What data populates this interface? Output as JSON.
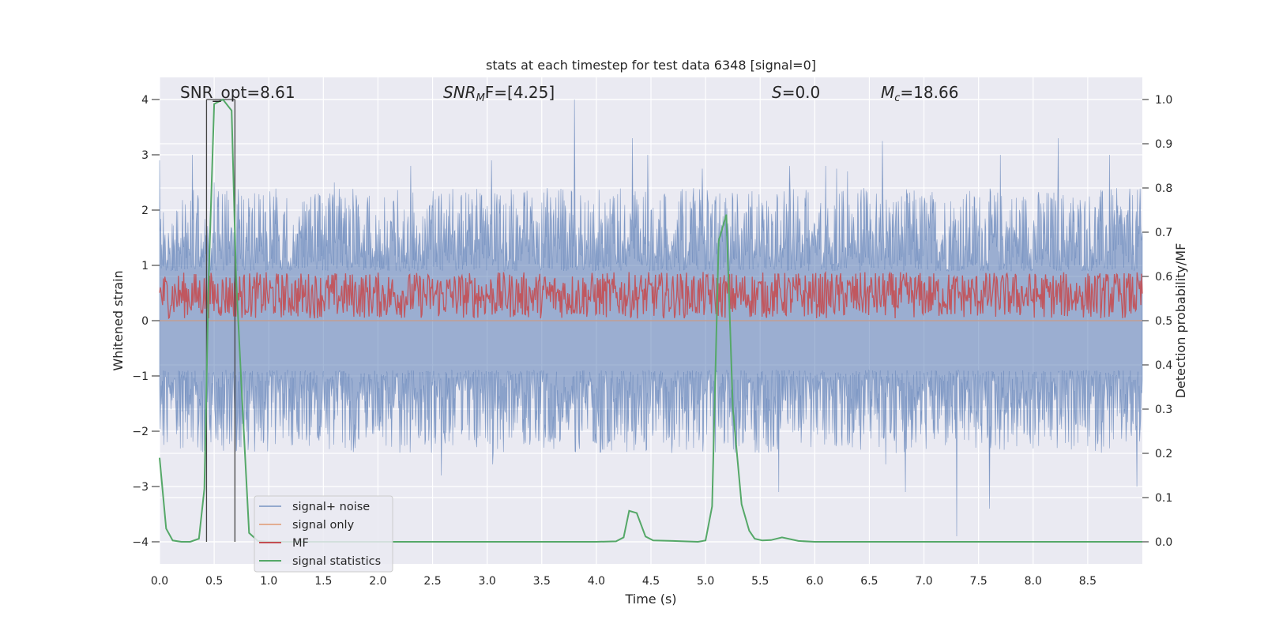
{
  "chart_data": {
    "type": "line",
    "title": "stats at each timestep for test data 6348 [signal=0]",
    "xlabel": "Time (s)",
    "ylabel": "Whitened strain",
    "ylabel_right": "Detection probability/MF",
    "xlim": [
      0.0,
      9.0
    ],
    "ylim": [
      -4.4,
      4.4
    ],
    "ylim_right": [
      -0.05,
      1.05
    ],
    "x_ticks": [
      "0.0",
      "0.5",
      "1.0",
      "1.5",
      "2.0",
      "2.5",
      "3.0",
      "3.5",
      "4.0",
      "4.5",
      "5.0",
      "5.5",
      "6.0",
      "6.5",
      "7.0",
      "7.5",
      "8.0",
      "8.5"
    ],
    "y_ticks": [
      "4",
      "3",
      "2",
      "1",
      "0",
      "−1",
      "−2",
      "−3",
      "−4"
    ],
    "y_ticks_right": [
      "1.0",
      "0.9",
      "0.8",
      "0.7",
      "0.6",
      "0.5",
      "0.4",
      "0.3",
      "0.2",
      "0.1",
      "0.0"
    ],
    "grid": true,
    "legend_position": "lower-left",
    "annotations": {
      "snr_opt": "SNR_opt=8.61",
      "snr_mf_sym": "SNR",
      "snr_mf_sub": "M",
      "snr_mf_tail": "F=[4.25]",
      "s_sym": "S",
      "s_val": "=0.0",
      "mc_sym": "M",
      "mc_sub": "c",
      "mc_val": "=18.66"
    },
    "window_markers_x": [
      0.43,
      0.69
    ],
    "window_top_y": 4.0,
    "series": [
      {
        "name": "signal+ noise",
        "color": "#4c72b0",
        "axis": "left",
        "kind": "noise",
        "envelope_upper": 1.6,
        "envelope_lower": -1.6,
        "notable_peaks": [
          [
            0.0,
            2.9
          ],
          [
            0.3,
            3.0
          ],
          [
            0.5,
            2.5
          ],
          [
            1.6,
            2.5
          ],
          [
            2.3,
            2.8
          ],
          [
            3.04,
            2.9
          ],
          [
            3.55,
            2.4
          ],
          [
            3.8,
            4.0
          ],
          [
            4.33,
            3.3
          ],
          [
            4.47,
            3.0
          ],
          [
            4.97,
            2.75
          ],
          [
            5.77,
            2.8
          ],
          [
            6.1,
            2.8
          ],
          [
            6.2,
            2.75
          ],
          [
            6.3,
            2.7
          ],
          [
            6.62,
            3.25
          ],
          [
            7.7,
            3.0
          ],
          [
            8.23,
            3.3
          ],
          [
            8.7,
            3.0
          ]
        ],
        "notable_troughs": [
          [
            0.07,
            -2.2
          ],
          [
            0.47,
            -2.2
          ],
          [
            1.7,
            -2.3
          ],
          [
            2.58,
            -2.8
          ],
          [
            3.05,
            -2.6
          ],
          [
            5.67,
            -3.1
          ],
          [
            6.65,
            -2.6
          ],
          [
            6.83,
            -3.1
          ],
          [
            7.3,
            -3.9
          ],
          [
            7.6,
            -3.4
          ],
          [
            8.95,
            -3.0
          ]
        ]
      },
      {
        "name": "signal only",
        "color": "#dd8452",
        "axis": "left",
        "kind": "flat",
        "values": [
          0.0
        ]
      },
      {
        "name": "MF",
        "color": "#c44e52",
        "axis": "right",
        "kind": "mf_noise",
        "mean": 0.555,
        "range": [
          0.505,
          0.61
        ]
      },
      {
        "name": "signal statistics",
        "color": "#55a868",
        "axis": "right",
        "kind": "line",
        "x": [
          0.0,
          0.06,
          0.12,
          0.2,
          0.28,
          0.36,
          0.41,
          0.45,
          0.5,
          0.58,
          0.66,
          0.7,
          0.75,
          0.82,
          0.9,
          1.0,
          2.0,
          3.0,
          4.0,
          4.18,
          4.25,
          4.3,
          4.37,
          4.45,
          4.52,
          4.7,
          4.93,
          5.0,
          5.06,
          5.12,
          5.19,
          5.25,
          5.33,
          5.4,
          5.45,
          5.52,
          5.6,
          5.7,
          5.85,
          6.0,
          7.0,
          8.0,
          9.0
        ],
        "y": [
          0.19,
          0.03,
          0.003,
          0.0,
          0.0,
          0.007,
          0.12,
          0.6,
          0.99,
          1.0,
          0.975,
          0.6,
          0.35,
          0.02,
          0.002,
          0.0,
          0.0,
          0.0,
          0.0,
          0.001,
          0.01,
          0.07,
          0.065,
          0.012,
          0.003,
          0.002,
          0.0,
          0.003,
          0.08,
          0.68,
          0.74,
          0.3,
          0.085,
          0.025,
          0.007,
          0.003,
          0.004,
          0.01,
          0.002,
          0.0,
          0.0,
          0.0,
          0.0
        ]
      }
    ]
  }
}
